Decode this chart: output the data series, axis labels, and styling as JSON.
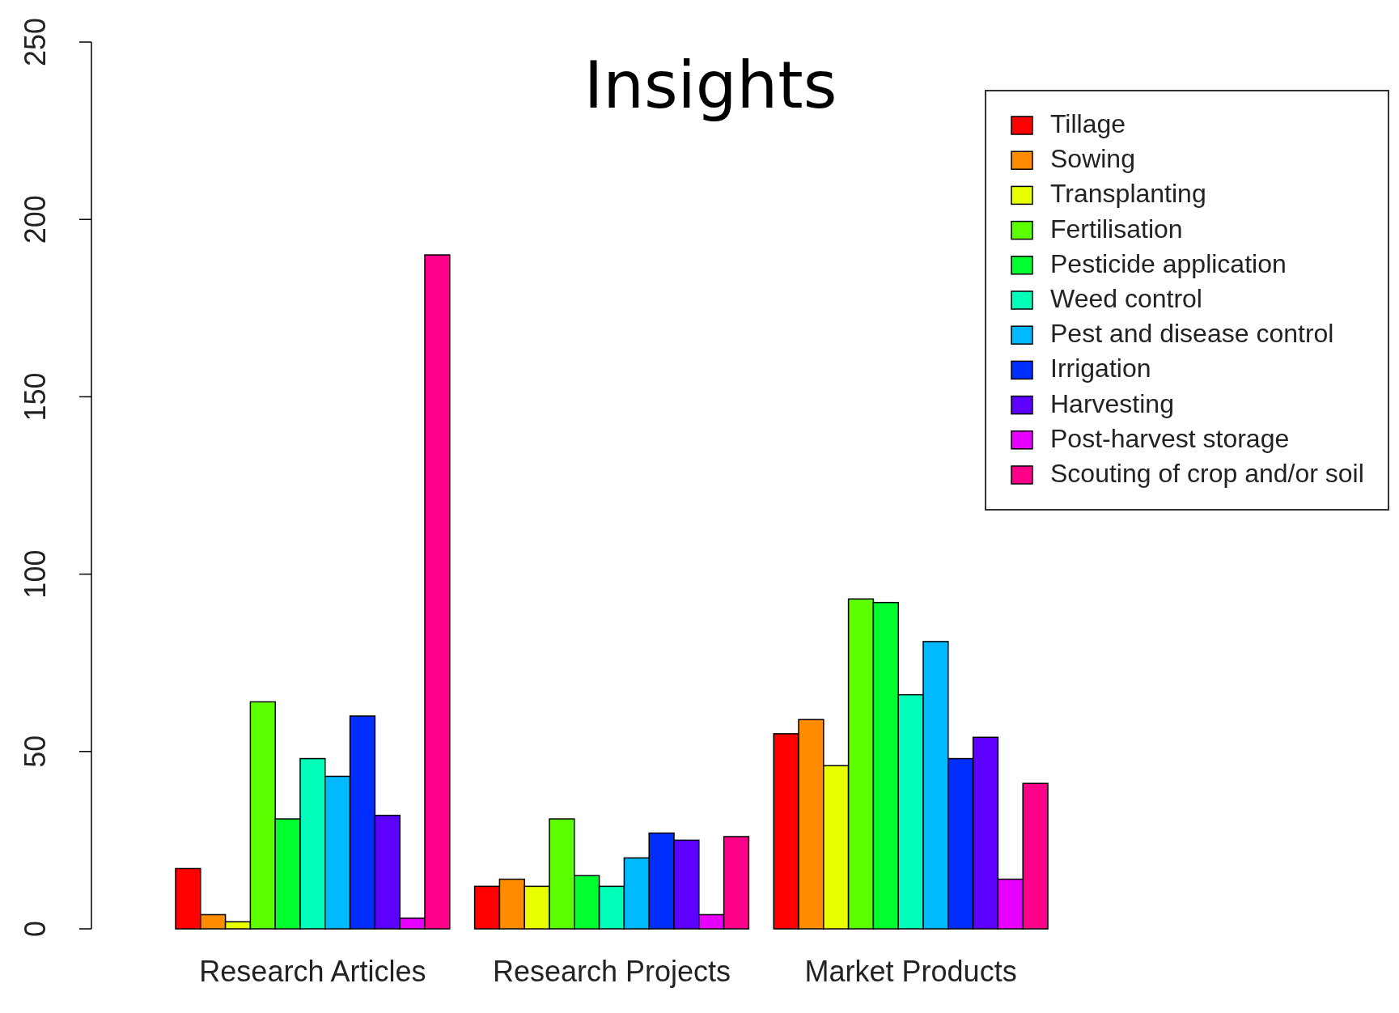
{
  "chart_data": {
    "type": "bar",
    "title": "Insights",
    "categories": [
      "Research Articles",
      "Research Projects",
      "Market Products"
    ],
    "series": [
      {
        "name": "Tillage",
        "color": "#ff0000",
        "values": [
          17,
          12,
          55
        ]
      },
      {
        "name": "Sowing",
        "color": "#ff8b00",
        "values": [
          4,
          14,
          59
        ]
      },
      {
        "name": "Transplanting",
        "color": "#e8ff00",
        "values": [
          2,
          12,
          46
        ]
      },
      {
        "name": "Fertilisation",
        "color": "#5dff00",
        "values": [
          64,
          31,
          93
        ]
      },
      {
        "name": "Pesticide application",
        "color": "#00ff2e",
        "values": [
          31,
          15,
          92
        ]
      },
      {
        "name": "Weed control",
        "color": "#00ffb9",
        "values": [
          48,
          12,
          66
        ]
      },
      {
        "name": "Pest and disease control",
        "color": "#00b9ff",
        "values": [
          43,
          20,
          81
        ]
      },
      {
        "name": "Irrigation",
        "color": "#002eff",
        "values": [
          60,
          27,
          48
        ]
      },
      {
        "name": "Harvesting",
        "color": "#5d00ff",
        "values": [
          32,
          25,
          54
        ]
      },
      {
        "name": "Post-harvest storage",
        "color": "#e800ff",
        "values": [
          3,
          4,
          14
        ]
      },
      {
        "name": "Scouting of crop and/or soil",
        "color": "#ff008b",
        "values": [
          190,
          26,
          41
        ]
      }
    ],
    "ylim": [
      0,
      250
    ],
    "yticks": [
      0,
      50,
      100,
      150,
      200,
      250
    ],
    "legend": "top right"
  }
}
